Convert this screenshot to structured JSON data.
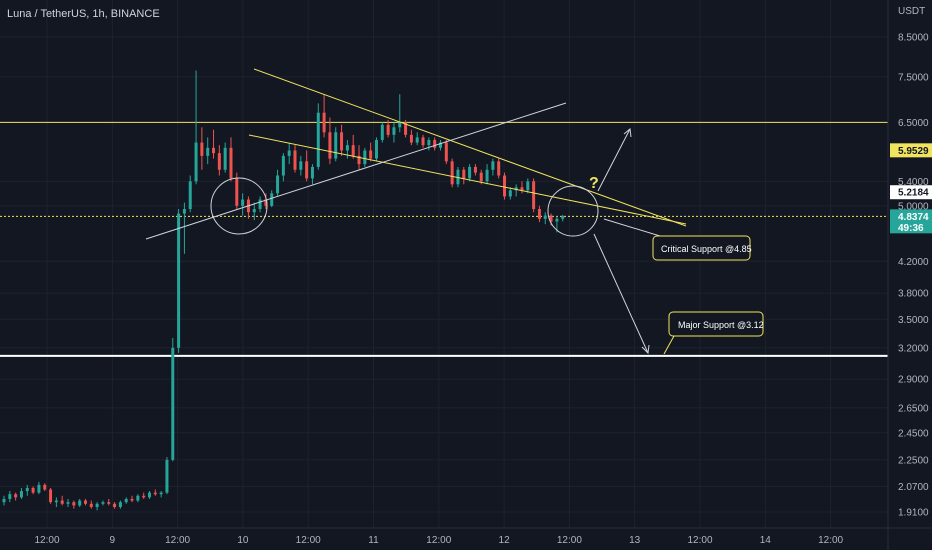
{
  "header": {
    "symbol_title": "Luna / TetherUS, 1h, BINANCE"
  },
  "chart_data": {
    "type": "candlestick",
    "title": "Luna / TetherUS, 1h, BINANCE",
    "price_axis": {
      "label": "USDT",
      "ticks": [
        "8.5000",
        "7.5000",
        "6.5000",
        "5.4000",
        "5.0000",
        "4.2000",
        "3.8000",
        "3.5000",
        "3.2000",
        "2.9000",
        "2.6500",
        "2.4500",
        "2.2500",
        "2.0700",
        "1.9100"
      ],
      "scale": "log"
    },
    "time_axis": {
      "ticks": [
        "12:00",
        "9",
        "12:00",
        "10",
        "12:00",
        "11",
        "12:00",
        "12",
        "12:00",
        "13",
        "12:00",
        "14",
        "12:00"
      ]
    },
    "price_tags": [
      {
        "label": "5.9529",
        "price": 5.9529,
        "kind": "yellow"
      },
      {
        "label": "5.2184",
        "price": 5.2184,
        "kind": "white"
      },
      {
        "label": "4.8374",
        "sublabel": "49:36",
        "price": 4.8374,
        "kind": "current"
      }
    ],
    "horizontal_levels": [
      {
        "price": 6.5,
        "color": "#f0e45f"
      },
      {
        "price": 4.8374,
        "color": "#f0e45f",
        "style": "dotted"
      },
      {
        "price": 3.12,
        "color": "#ffffff"
      }
    ],
    "annotations": [
      {
        "text": "Critical Support @4.85"
      },
      {
        "text": "Major Support @3.12"
      },
      {
        "text": "?"
      }
    ],
    "candles": [
      [
        1.97,
        2.01,
        1.95,
        1.99
      ],
      [
        1.99,
        2.04,
        1.97,
        2.02
      ],
      [
        2.02,
        2.03,
        1.98,
        2.0
      ],
      [
        2.0,
        2.06,
        1.99,
        2.04
      ],
      [
        2.04,
        2.08,
        2.01,
        2.06
      ],
      [
        2.06,
        2.07,
        2.02,
        2.03
      ],
      [
        2.03,
        2.1,
        2.02,
        2.08
      ],
      [
        2.08,
        2.09,
        2.04,
        2.05
      ],
      [
        2.05,
        2.06,
        1.96,
        1.97
      ],
      [
        1.97,
        2.0,
        1.94,
        1.98
      ],
      [
        1.98,
        2.01,
        1.95,
        1.96
      ],
      [
        1.96,
        1.99,
        1.94,
        1.97
      ],
      [
        1.97,
        1.98,
        1.93,
        1.95
      ],
      [
        1.95,
        1.99,
        1.94,
        1.98
      ],
      [
        1.98,
        1.99,
        1.95,
        1.96
      ],
      [
        1.96,
        1.98,
        1.93,
        1.94
      ],
      [
        1.94,
        1.97,
        1.92,
        1.96
      ],
      [
        1.96,
        1.98,
        1.95,
        1.97
      ],
      [
        1.97,
        1.99,
        1.95,
        1.96
      ],
      [
        1.96,
        1.97,
        1.93,
        1.94
      ],
      [
        1.94,
        1.98,
        1.93,
        1.97
      ],
      [
        1.97,
        2.0,
        1.96,
        1.99
      ],
      [
        1.99,
        2.01,
        1.97,
        1.98
      ],
      [
        1.98,
        2.02,
        1.97,
        2.01
      ],
      [
        2.01,
        2.03,
        1.99,
        2.0
      ],
      [
        2.0,
        2.04,
        1.99,
        2.03
      ],
      [
        2.03,
        2.05,
        2.01,
        2.02
      ],
      [
        2.02,
        2.04,
        2.0,
        2.03
      ],
      [
        2.03,
        2.27,
        2.02,
        2.25
      ],
      [
        2.25,
        3.3,
        2.24,
        3.2
      ],
      [
        3.2,
        4.95,
        3.15,
        4.88
      ],
      [
        4.88,
        5.05,
        4.3,
        4.95
      ],
      [
        4.95,
        5.5,
        4.9,
        5.4
      ],
      [
        5.4,
        7.65,
        5.35,
        6.1
      ],
      [
        6.1,
        6.4,
        5.6,
        5.85
      ],
      [
        5.85,
        6.2,
        5.7,
        6.0
      ],
      [
        6.0,
        6.35,
        5.8,
        5.9
      ],
      [
        5.9,
        6.05,
        5.5,
        5.6
      ],
      [
        5.6,
        6.1,
        5.55,
        6.0
      ],
      [
        6.0,
        6.2,
        5.4,
        5.45
      ],
      [
        5.45,
        5.55,
        4.95,
        5.0
      ],
      [
        5.0,
        5.2,
        4.85,
        5.1
      ],
      [
        5.1,
        5.15,
        4.8,
        4.9
      ],
      [
        4.9,
        5.05,
        4.78,
        4.95
      ],
      [
        4.95,
        5.15,
        4.9,
        5.1
      ],
      [
        5.1,
        5.2,
        4.95,
        5.0
      ],
      [
        5.0,
        5.25,
        4.98,
        5.2
      ],
      [
        5.2,
        5.6,
        5.15,
        5.5
      ],
      [
        5.5,
        5.9,
        5.4,
        5.85
      ],
      [
        5.85,
        6.1,
        5.7,
        5.95
      ],
      [
        5.95,
        6.05,
        5.55,
        5.6
      ],
      [
        5.6,
        5.85,
        5.5,
        5.75
      ],
      [
        5.75,
        5.95,
        5.4,
        5.45
      ],
      [
        5.45,
        5.7,
        5.35,
        5.65
      ],
      [
        5.65,
        6.9,
        5.6,
        6.7
      ],
      [
        6.7,
        7.1,
        6.2,
        6.3
      ],
      [
        6.3,
        6.6,
        5.7,
        5.8
      ],
      [
        5.8,
        6.4,
        5.75,
        6.3
      ],
      [
        6.3,
        6.45,
        5.85,
        5.95
      ],
      [
        5.95,
        6.15,
        5.8,
        6.05
      ],
      [
        6.05,
        6.25,
        5.8,
        5.85
      ],
      [
        5.85,
        6.05,
        5.6,
        5.7
      ],
      [
        5.7,
        6.0,
        5.65,
        5.95
      ],
      [
        5.95,
        6.1,
        5.75,
        5.8
      ],
      [
        5.8,
        6.2,
        5.75,
        6.15
      ],
      [
        6.15,
        6.5,
        6.1,
        6.45
      ],
      [
        6.45,
        6.55,
        6.2,
        6.25
      ],
      [
        6.25,
        6.5,
        6.1,
        6.4
      ],
      [
        6.4,
        7.1,
        6.3,
        6.5
      ],
      [
        6.5,
        6.55,
        6.2,
        6.25
      ],
      [
        6.25,
        6.35,
        6.05,
        6.1
      ],
      [
        6.1,
        6.3,
        6.05,
        6.2
      ],
      [
        6.2,
        6.25,
        6.0,
        6.05
      ],
      [
        6.05,
        6.2,
        5.95,
        6.15
      ],
      [
        6.15,
        6.2,
        5.95,
        6.0
      ],
      [
        6.0,
        6.15,
        5.95,
        6.1
      ],
      [
        6.1,
        6.15,
        5.7,
        5.75
      ],
      [
        5.75,
        5.8,
        5.3,
        5.35
      ],
      [
        5.35,
        5.65,
        5.3,
        5.6
      ],
      [
        5.6,
        5.65,
        5.35,
        5.45
      ],
      [
        5.45,
        5.7,
        5.4,
        5.65
      ],
      [
        5.65,
        5.7,
        5.5,
        5.55
      ],
      [
        5.55,
        5.6,
        5.35,
        5.4
      ],
      [
        5.4,
        5.7,
        5.35,
        5.6
      ],
      [
        5.6,
        5.8,
        5.5,
        5.75
      ],
      [
        5.75,
        5.8,
        5.45,
        5.5
      ],
      [
        5.5,
        5.55,
        5.1,
        5.15
      ],
      [
        5.15,
        5.3,
        5.1,
        5.25
      ],
      [
        5.25,
        5.35,
        5.15,
        5.3
      ],
      [
        5.3,
        5.4,
        5.2,
        5.25
      ],
      [
        5.25,
        5.45,
        5.2,
        5.4
      ],
      [
        5.4,
        5.45,
        4.9,
        4.95
      ],
      [
        4.95,
        5.0,
        4.75,
        4.8
      ],
      [
        4.8,
        4.9,
        4.72,
        4.85
      ],
      [
        4.85,
        4.88,
        4.7,
        4.76
      ],
      [
        4.76,
        4.84,
        4.6,
        4.8
      ],
      [
        4.8,
        4.86,
        4.76,
        4.84
      ]
    ]
  }
}
